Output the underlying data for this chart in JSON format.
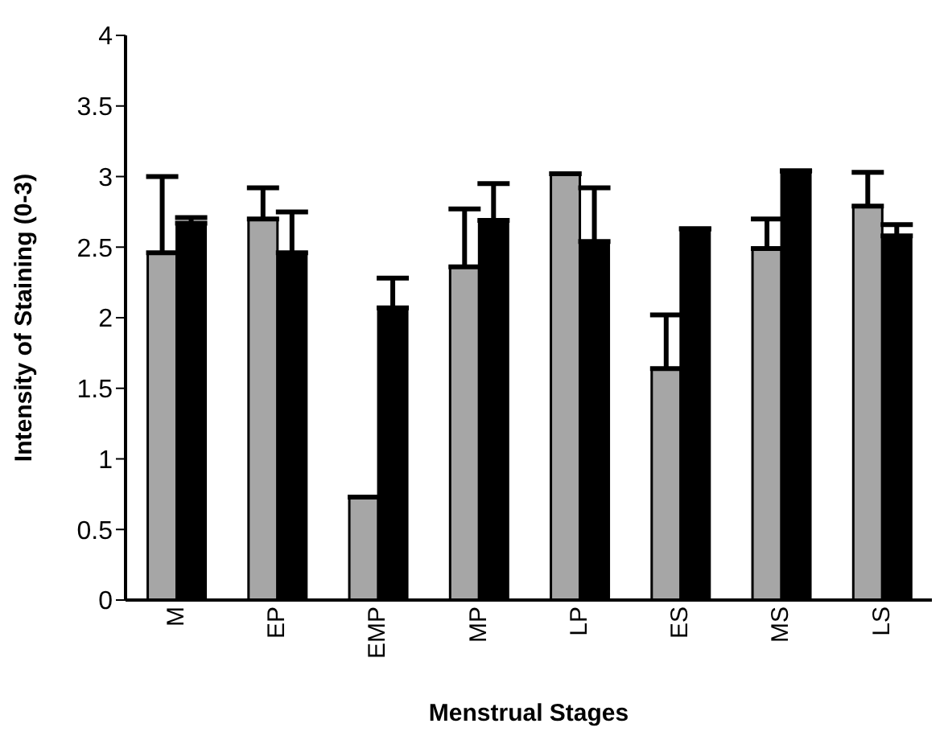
{
  "chart_data": {
    "type": "bar",
    "xlabel": "Menstrual Stages",
    "ylabel": "Intensity of Staining (0-3)",
    "categories": [
      "M",
      "EP",
      "EMP",
      "MP",
      "LP",
      "ES",
      "MS",
      "LS"
    ],
    "series": [
      {
        "color": "#a6a6a6",
        "values": [
          2.46,
          2.7,
          0.73,
          2.36,
          3.02,
          1.64,
          2.49,
          2.79
        ],
        "errors": [
          [
            2.46,
            3.0
          ],
          [
            2.7,
            2.92
          ],
          null,
          [
            2.36,
            2.77
          ],
          null,
          [
            1.64,
            2.02
          ],
          [
            2.49,
            2.7
          ],
          [
            2.79,
            3.03
          ]
        ]
      },
      {
        "color": "#000000",
        "values": [
          2.67,
          2.46,
          2.07,
          2.69,
          2.54,
          2.63,
          3.04,
          2.58
        ],
        "errors": [
          [
            2.67,
            2.71
          ],
          [
            2.46,
            2.75
          ],
          [
            2.07,
            2.28
          ],
          [
            2.69,
            2.95
          ],
          [
            2.54,
            2.92
          ],
          null,
          null,
          [
            2.58,
            2.66
          ]
        ]
      }
    ],
    "ylim": [
      0,
      4
    ],
    "yticks": [
      0,
      {
        "value": 0.5,
        "label": "0.5"
      },
      1,
      {
        "value": 1.5,
        "label": "1.5"
      },
      2,
      {
        "value": 2.5,
        "label": "2.5"
      },
      3,
      {
        "value": 3.5,
        "label": "3.5"
      },
      4
    ],
    "grid": false,
    "legend": false
  }
}
